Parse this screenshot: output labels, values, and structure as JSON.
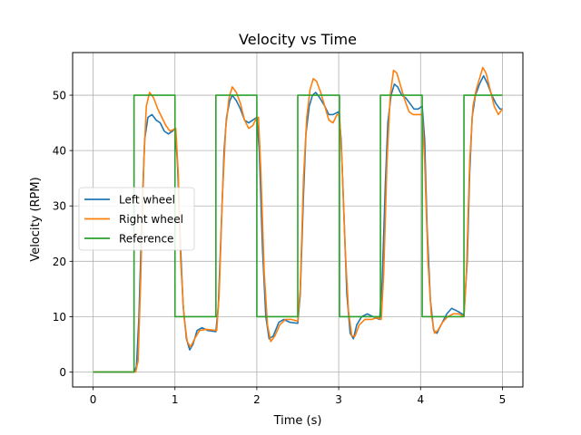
{
  "chart_data": {
    "type": "line",
    "title": "Velocity vs Time",
    "xlabel": "Time (s)",
    "ylabel": "Velocity (RPM)",
    "xlim": [
      -0.25,
      5.25
    ],
    "ylim": [
      -2.7,
      57.7
    ],
    "xticks": [
      0,
      1,
      2,
      3,
      4,
      5
    ],
    "xtick_labels": [
      "0",
      "1",
      "2",
      "3",
      "4",
      "5"
    ],
    "yticks": [
      0,
      10,
      20,
      30,
      40,
      50
    ],
    "ytick_labels": [
      "0",
      "10",
      "20",
      "30",
      "40",
      "50"
    ],
    "grid": true,
    "legend_position": "center-left",
    "series": [
      {
        "name": "Left wheel",
        "color": "#1f77b4",
        "points": [
          [
            0,
            0
          ],
          [
            0.5,
            0
          ],
          [
            0.53,
            1
          ],
          [
            0.56,
            10
          ],
          [
            0.6,
            30
          ],
          [
            0.63,
            42
          ],
          [
            0.67,
            46
          ],
          [
            0.72,
            46.5
          ],
          [
            0.77,
            45.5
          ],
          [
            0.82,
            45
          ],
          [
            0.87,
            43.5
          ],
          [
            0.92,
            43
          ],
          [
            0.97,
            43.5
          ],
          [
            1.0,
            44
          ],
          [
            1.03,
            38
          ],
          [
            1.07,
            22
          ],
          [
            1.1,
            12
          ],
          [
            1.14,
            6
          ],
          [
            1.18,
            4
          ],
          [
            1.22,
            5
          ],
          [
            1.27,
            7.5
          ],
          [
            1.33,
            8
          ],
          [
            1.4,
            7.5
          ],
          [
            1.5,
            7.3
          ],
          [
            1.53,
            12
          ],
          [
            1.57,
            28
          ],
          [
            1.6,
            40
          ],
          [
            1.63,
            46
          ],
          [
            1.67,
            49
          ],
          [
            1.7,
            50
          ],
          [
            1.75,
            49
          ],
          [
            1.8,
            47.5
          ],
          [
            1.85,
            45.5
          ],
          [
            1.9,
            45
          ],
          [
            1.95,
            45.5
          ],
          [
            2.0,
            46
          ],
          [
            2.03,
            40
          ],
          [
            2.07,
            22
          ],
          [
            2.11,
            10
          ],
          [
            2.15,
            6
          ],
          [
            2.2,
            6.5
          ],
          [
            2.27,
            9
          ],
          [
            2.33,
            9.5
          ],
          [
            2.4,
            9
          ],
          [
            2.5,
            8.8
          ],
          [
            2.53,
            14
          ],
          [
            2.57,
            32
          ],
          [
            2.6,
            43
          ],
          [
            2.64,
            48
          ],
          [
            2.68,
            50
          ],
          [
            2.72,
            50.5
          ],
          [
            2.77,
            49.5
          ],
          [
            2.83,
            48
          ],
          [
            2.88,
            46.5
          ],
          [
            2.93,
            46.5
          ],
          [
            3.0,
            47
          ],
          [
            3.03,
            42
          ],
          [
            3.07,
            26
          ],
          [
            3.1,
            14
          ],
          [
            3.14,
            7
          ],
          [
            3.18,
            6
          ],
          [
            3.22,
            8.5
          ],
          [
            3.28,
            10
          ],
          [
            3.35,
            10.5
          ],
          [
            3.42,
            10
          ],
          [
            3.5,
            9.5
          ],
          [
            3.53,
            16
          ],
          [
            3.57,
            34
          ],
          [
            3.6,
            45
          ],
          [
            3.64,
            50
          ],
          [
            3.68,
            52
          ],
          [
            3.72,
            51.5
          ],
          [
            3.77,
            50
          ],
          [
            3.82,
            49.5
          ],
          [
            3.87,
            48.5
          ],
          [
            3.92,
            47.5
          ],
          [
            3.97,
            47.5
          ],
          [
            4.02,
            48
          ],
          [
            4.05,
            42
          ],
          [
            4.08,
            26
          ],
          [
            4.12,
            13
          ],
          [
            4.16,
            7.5
          ],
          [
            4.2,
            7
          ],
          [
            4.25,
            8.5
          ],
          [
            4.32,
            10.5
          ],
          [
            4.38,
            11.5
          ],
          [
            4.45,
            11
          ],
          [
            4.53,
            10.3
          ],
          [
            4.57,
            20
          ],
          [
            4.6,
            36
          ],
          [
            4.63,
            46
          ],
          [
            4.67,
            50
          ],
          [
            4.72,
            52
          ],
          [
            4.77,
            53.5
          ],
          [
            4.82,
            52
          ],
          [
            4.87,
            50
          ],
          [
            4.92,
            48.5
          ],
          [
            4.97,
            47.5
          ],
          [
            5.0,
            47.5
          ]
        ]
      },
      {
        "name": "Right wheel",
        "color": "#ff7f0e",
        "points": [
          [
            0,
            0
          ],
          [
            0.52,
            0
          ],
          [
            0.55,
            2
          ],
          [
            0.58,
            16
          ],
          [
            0.62,
            38
          ],
          [
            0.65,
            48
          ],
          [
            0.69,
            50.5
          ],
          [
            0.74,
            49.5
          ],
          [
            0.79,
            47.5
          ],
          [
            0.84,
            46
          ],
          [
            0.89,
            44.5
          ],
          [
            0.94,
            43.5
          ],
          [
            0.98,
            43.8
          ],
          [
            1.01,
            44
          ],
          [
            1.04,
            36
          ],
          [
            1.07,
            20
          ],
          [
            1.11,
            10
          ],
          [
            1.15,
            5.5
          ],
          [
            1.19,
            4.5
          ],
          [
            1.24,
            6
          ],
          [
            1.3,
            7.5
          ],
          [
            1.38,
            7.7
          ],
          [
            1.45,
            7.6
          ],
          [
            1.51,
            7.5
          ],
          [
            1.54,
            14
          ],
          [
            1.58,
            32
          ],
          [
            1.62,
            44
          ],
          [
            1.66,
            49.5
          ],
          [
            1.7,
            51.5
          ],
          [
            1.75,
            50.5
          ],
          [
            1.8,
            48.5
          ],
          [
            1.85,
            45.5
          ],
          [
            1.9,
            44
          ],
          [
            1.95,
            44.5
          ],
          [
            2.0,
            46
          ],
          [
            2.02,
            46
          ],
          [
            2.05,
            36
          ],
          [
            2.09,
            18
          ],
          [
            2.13,
            8.5
          ],
          [
            2.17,
            5.5
          ],
          [
            2.22,
            6.5
          ],
          [
            2.28,
            8.5
          ],
          [
            2.35,
            9.5
          ],
          [
            2.42,
            9.5
          ],
          [
            2.5,
            9.2
          ],
          [
            2.53,
            15
          ],
          [
            2.57,
            35
          ],
          [
            2.61,
            46
          ],
          [
            2.65,
            51
          ],
          [
            2.69,
            53
          ],
          [
            2.73,
            52.5
          ],
          [
            2.78,
            50.5
          ],
          [
            2.83,
            48
          ],
          [
            2.88,
            45.5
          ],
          [
            2.93,
            45
          ],
          [
            2.98,
            46.5
          ],
          [
            3.01,
            46.5
          ],
          [
            3.04,
            38
          ],
          [
            3.08,
            22
          ],
          [
            3.12,
            11
          ],
          [
            3.16,
            6.5
          ],
          [
            3.2,
            6.5
          ],
          [
            3.25,
            8.5
          ],
          [
            3.32,
            9.5
          ],
          [
            3.4,
            9.5
          ],
          [
            3.47,
            9.8
          ],
          [
            3.52,
            9.5
          ],
          [
            3.55,
            18
          ],
          [
            3.59,
            38
          ],
          [
            3.63,
            50
          ],
          [
            3.67,
            54.5
          ],
          [
            3.71,
            54
          ],
          [
            3.76,
            51.5
          ],
          [
            3.81,
            49
          ],
          [
            3.86,
            47
          ],
          [
            3.91,
            46.5
          ],
          [
            3.96,
            46.5
          ],
          [
            4.02,
            46.5
          ],
          [
            4.05,
            38
          ],
          [
            4.09,
            20
          ],
          [
            4.13,
            10.5
          ],
          [
            4.17,
            7
          ],
          [
            4.21,
            7.5
          ],
          [
            4.27,
            9
          ],
          [
            4.33,
            10
          ],
          [
            4.4,
            10.5
          ],
          [
            4.47,
            10.5
          ],
          [
            4.53,
            10
          ],
          [
            4.56,
            18
          ],
          [
            4.6,
            38
          ],
          [
            4.64,
            48
          ],
          [
            4.68,
            51
          ],
          [
            4.72,
            53
          ],
          [
            4.76,
            55
          ],
          [
            4.8,
            54
          ],
          [
            4.85,
            51
          ],
          [
            4.9,
            48
          ],
          [
            4.95,
            46.5
          ],
          [
            5.0,
            47.5
          ]
        ]
      },
      {
        "name": "Reference",
        "color": "#2ca02c",
        "points": [
          [
            0,
            0
          ],
          [
            0.5,
            0
          ],
          [
            0.5,
            50
          ],
          [
            1.0,
            50
          ],
          [
            1.0,
            10
          ],
          [
            1.5,
            10
          ],
          [
            1.5,
            50
          ],
          [
            2.0,
            50
          ],
          [
            2.0,
            10
          ],
          [
            2.5,
            10
          ],
          [
            2.5,
            50
          ],
          [
            3.01,
            50
          ],
          [
            3.01,
            10
          ],
          [
            3.51,
            10
          ],
          [
            3.51,
            50
          ],
          [
            4.02,
            50
          ],
          [
            4.02,
            10
          ],
          [
            4.53,
            10
          ],
          [
            4.53,
            50
          ],
          [
            5.0,
            50
          ]
        ]
      }
    ]
  }
}
